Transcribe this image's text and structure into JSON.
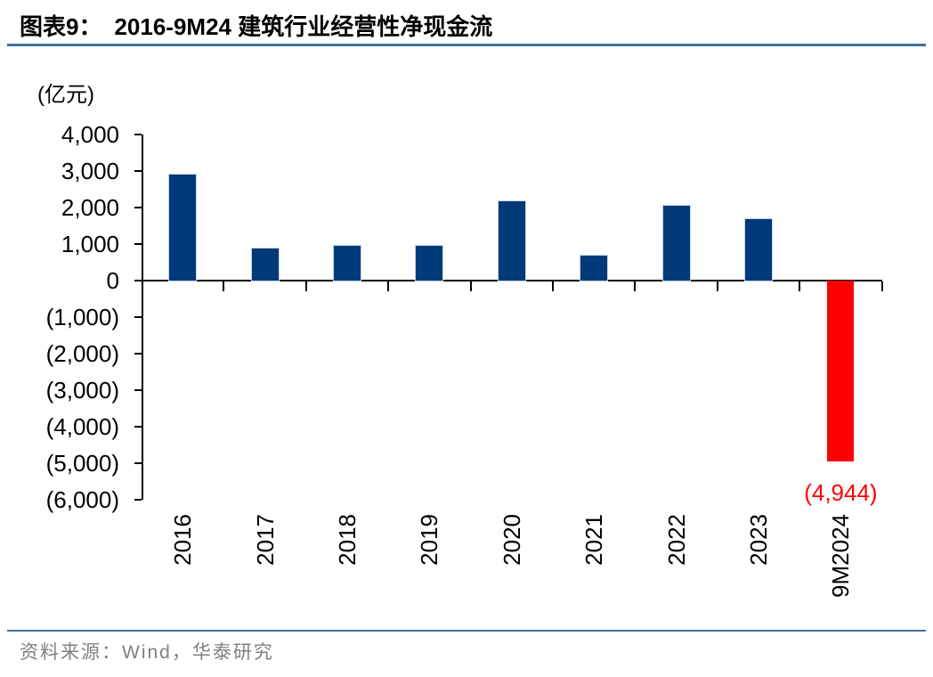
{
  "header": {
    "figure_label": "图表9：",
    "figure_title": "2016-9M24 建筑行业经营性净现金流"
  },
  "chart_data": {
    "type": "bar",
    "title": "2016-9M24 建筑行业经营性净现金流",
    "unit_label": "(亿元)",
    "categories": [
      "2016",
      "2017",
      "2018",
      "2019",
      "2020",
      "2021",
      "2022",
      "2023",
      "9M2024"
    ],
    "values": [
      2900,
      890,
      950,
      940,
      2170,
      680,
      2040,
      1690,
      -4944
    ],
    "ylim": [
      -6000,
      4000
    ],
    "ytick_step": 1000,
    "ytick_labels": [
      "4,000",
      "3,000",
      "2,000",
      "1,000",
      "0",
      "(1,000)",
      "(2,000)",
      "(3,000)",
      "(4,000)",
      "(5,000)",
      "(6,000)"
    ],
    "annotation": {
      "text": "(4,944)",
      "category": "9M2024"
    },
    "xlabel": "",
    "ylabel": "(亿元)",
    "grid": false,
    "legend": null,
    "colors": {
      "positive_bar": "#003a78",
      "negative_bar": "#ff0000",
      "annotation": "#ff0000",
      "divider": "#41719c",
      "source_text": "#808080"
    }
  },
  "footer": {
    "source_label": "资料来源：Wind，华泰研究"
  }
}
